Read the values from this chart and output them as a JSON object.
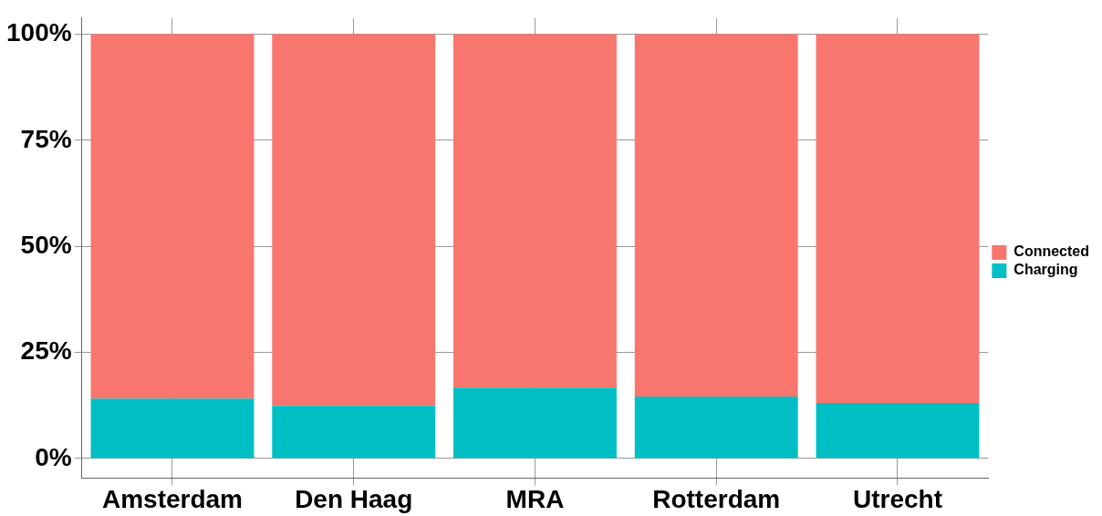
{
  "chart_data": {
    "type": "bar",
    "stacked": true,
    "categories": [
      "Amsterdam",
      "Den Haag",
      "MRA",
      "Rotterdam",
      "Utrecht"
    ],
    "series": [
      {
        "name": "Charging",
        "color": "#00bfc4",
        "values": [
          14.1,
          12.4,
          16.7,
          14.6,
          13.1
        ]
      },
      {
        "name": "Connected",
        "color": "#f8766d",
        "values": [
          85.9,
          87.6,
          83.3,
          85.4,
          86.9
        ]
      }
    ],
    "ylim": [
      -4.6,
      103.8
    ],
    "yticks": [
      {
        "value": 0,
        "label": "0%"
      },
      {
        "value": 25,
        "label": "25%"
      },
      {
        "value": 50,
        "label": "50%"
      },
      {
        "value": 75,
        "label": "75%"
      },
      {
        "value": 100,
        "label": "100%"
      }
    ],
    "grid": true,
    "legend": "right"
  }
}
